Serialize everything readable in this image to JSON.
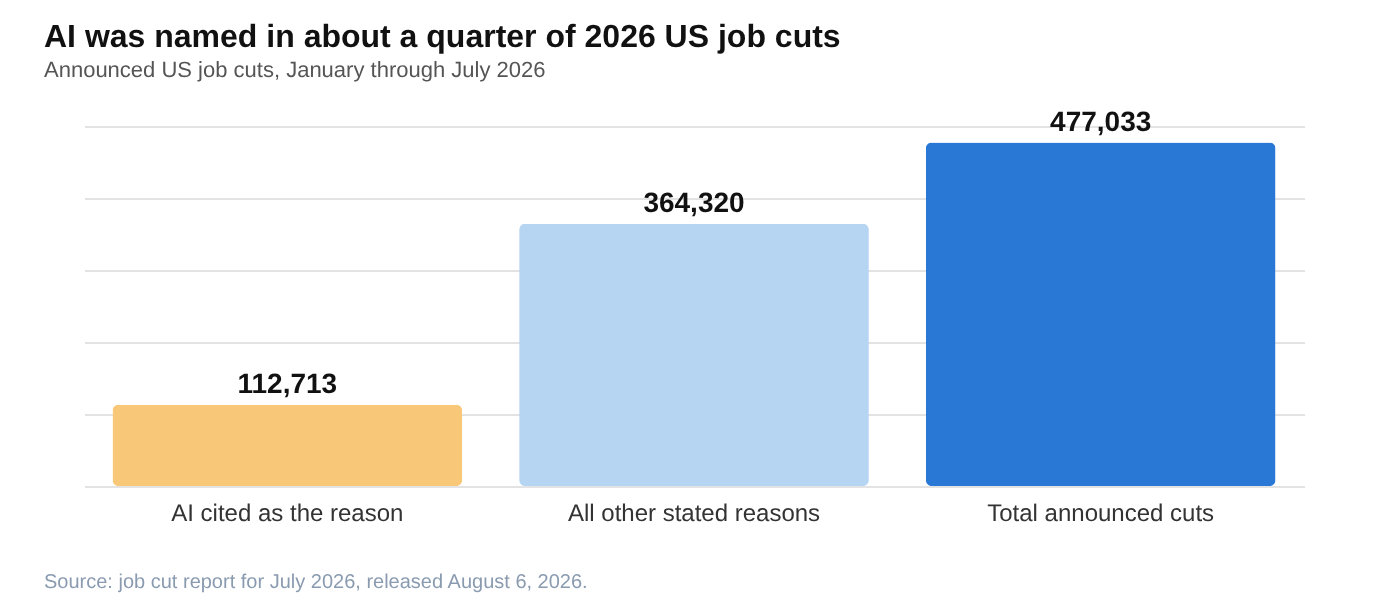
{
  "chart_data": {
    "type": "bar",
    "title": "AI was named in about a quarter of 2026 US job cuts",
    "subtitle": "Announced US job cuts, January through July 2026",
    "categories": [
      "AI cited as the reason",
      "All other stated reasons",
      "Total announced cuts"
    ],
    "values": [
      112713,
      364320,
      477033
    ],
    "colors": [
      "#f8c878",
      "#b6d5f3",
      "#2a78d6"
    ],
    "value_labels": [
      "112,713",
      "364,320",
      "477,033"
    ],
    "grid": "y",
    "tick_labels": "x",
    "annotations": [
      "Source: job cut report for July 2026, released August 6, 2026."
    ]
  }
}
